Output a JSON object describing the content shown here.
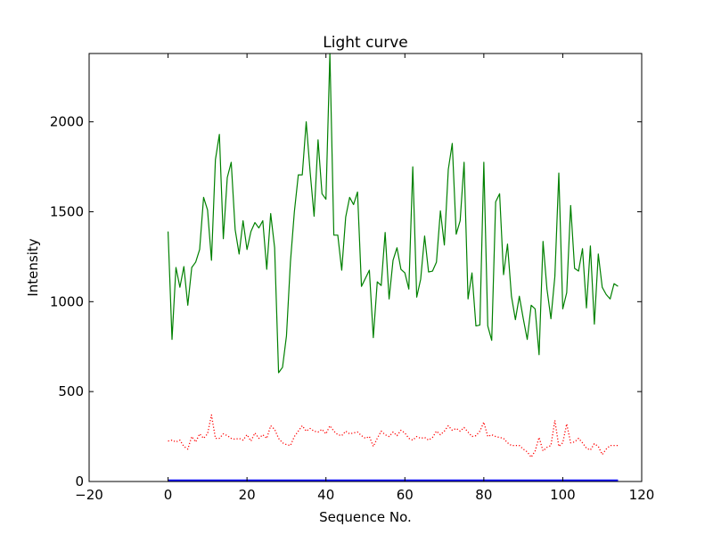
{
  "chart_data": {
    "type": "line",
    "title": "Light curve",
    "xlabel": "Sequence No.",
    "ylabel": "Intensity",
    "xlim": [
      -20,
      120
    ],
    "ylim": [
      0,
      2380
    ],
    "xticks": [
      -20,
      0,
      20,
      40,
      60,
      80,
      100,
      120
    ],
    "yticks": [
      0,
      500,
      1000,
      1500,
      2000
    ],
    "xtick_labels": [
      "−20",
      "0",
      "20",
      "40",
      "60",
      "80",
      "100",
      "120"
    ],
    "ytick_labels": [
      "0",
      "500",
      "1000",
      "1500",
      "2000"
    ],
    "grid": false,
    "legend": "none",
    "series": [
      {
        "color": "#008000",
        "style": "solid",
        "x": [
          0,
          1,
          2,
          3,
          4,
          5,
          6,
          7,
          8,
          9,
          10,
          11,
          12,
          13,
          14,
          15,
          16,
          17,
          18,
          19,
          20,
          21,
          22,
          23,
          24,
          25,
          26,
          27,
          28,
          29,
          30,
          31,
          32,
          33,
          34,
          35,
          36,
          37,
          38,
          39,
          40,
          41,
          42,
          43,
          44,
          45,
          46,
          47,
          48,
          49,
          50,
          51,
          52,
          53,
          54,
          55,
          56,
          57,
          58,
          59,
          60,
          61,
          62,
          63,
          64,
          65,
          66,
          67,
          68,
          69,
          70,
          71,
          72,
          73,
          74,
          75,
          76,
          77,
          78,
          79,
          80,
          81,
          82,
          83,
          84,
          85,
          86,
          87,
          88,
          89,
          90,
          91,
          92,
          93,
          94,
          95,
          96,
          97,
          98,
          99,
          100,
          101,
          102,
          103,
          104,
          105,
          106,
          107,
          108,
          109,
          110,
          111,
          112,
          113,
          114
        ],
        "values": [
          1390,
          790,
          1190,
          1080,
          1195,
          980,
          1190,
          1220,
          1290,
          1580,
          1510,
          1230,
          1790,
          1930,
          1350,
          1690,
          1775,
          1400,
          1265,
          1450,
          1290,
          1390,
          1440,
          1410,
          1450,
          1180,
          1490,
          1300,
          605,
          635,
          810,
          1220,
          1500,
          1705,
          1705,
          2000,
          1720,
          1475,
          1900,
          1600,
          1570,
          2380,
          1370,
          1370,
          1175,
          1470,
          1580,
          1540,
          1610,
          1085,
          1130,
          1175,
          800,
          1110,
          1090,
          1385,
          1015,
          1230,
          1300,
          1180,
          1160,
          1070,
          1750,
          1025,
          1125,
          1365,
          1165,
          1170,
          1220,
          1505,
          1315,
          1735,
          1880,
          1375,
          1450,
          1775,
          1015,
          1160,
          865,
          870,
          1775,
          865,
          785,
          1555,
          1600,
          1150,
          1320,
          1030,
          900,
          1030,
          905,
          790,
          980,
          960,
          705,
          1335,
          1070,
          905,
          1140,
          1715,
          960,
          1050,
          1535,
          1185,
          1170,
          1295,
          965,
          1310,
          875,
          1265,
          1080,
          1040,
          1015,
          1100,
          1085
        ]
      },
      {
        "color": "#ff0000",
        "style": "dotted",
        "x": [
          0,
          1,
          2,
          3,
          4,
          5,
          6,
          7,
          8,
          9,
          10,
          11,
          12,
          13,
          14,
          15,
          16,
          17,
          18,
          19,
          20,
          21,
          22,
          23,
          24,
          25,
          26,
          27,
          28,
          29,
          30,
          31,
          32,
          33,
          34,
          35,
          36,
          37,
          38,
          39,
          40,
          41,
          42,
          43,
          44,
          45,
          46,
          47,
          48,
          49,
          50,
          51,
          52,
          53,
          54,
          55,
          56,
          57,
          58,
          59,
          60,
          61,
          62,
          63,
          64,
          65,
          66,
          67,
          68,
          69,
          70,
          71,
          72,
          73,
          74,
          75,
          76,
          77,
          78,
          79,
          80,
          81,
          82,
          83,
          84,
          85,
          86,
          87,
          88,
          89,
          90,
          91,
          92,
          93,
          94,
          95,
          96,
          97,
          98,
          99,
          100,
          101,
          102,
          103,
          104,
          105,
          106,
          107,
          108,
          109,
          110,
          111,
          112,
          113,
          114
        ],
        "values": [
          225,
          230,
          220,
          230,
          195,
          180,
          250,
          220,
          265,
          240,
          265,
          370,
          240,
          240,
          265,
          255,
          240,
          235,
          240,
          230,
          260,
          225,
          270,
          240,
          260,
          240,
          310,
          290,
          240,
          215,
          205,
          200,
          250,
          280,
          310,
          280,
          295,
          280,
          275,
          290,
          265,
          310,
          280,
          260,
          255,
          280,
          265,
          270,
          275,
          255,
          240,
          250,
          195,
          240,
          280,
          260,
          250,
          275,
          255,
          285,
          270,
          240,
          230,
          250,
          240,
          245,
          230,
          245,
          280,
          260,
          280,
          310,
          285,
          295,
          280,
          300,
          275,
          250,
          255,
          280,
          330,
          250,
          260,
          250,
          245,
          240,
          215,
          200,
          200,
          200,
          180,
          165,
          135,
          170,
          245,
          170,
          190,
          200,
          340,
          195,
          215,
          320,
          215,
          220,
          240,
          215,
          185,
          175,
          210,
          195,
          150,
          180,
          200,
          200,
          200
        ]
      },
      {
        "color": "#0000ff",
        "style": "solid",
        "x": [
          0,
          1,
          2,
          3,
          4,
          5,
          6,
          7,
          8,
          9,
          10,
          11,
          12,
          13,
          14,
          15,
          16,
          17,
          18,
          19,
          20,
          21,
          22,
          23,
          24,
          25,
          26,
          27,
          28,
          29,
          30,
          31,
          32,
          33,
          34,
          35,
          36,
          37,
          38,
          39,
          40,
          41,
          42,
          43,
          44,
          45,
          46,
          47,
          48,
          49,
          50,
          51,
          52,
          53,
          54,
          55,
          56,
          57,
          58,
          59,
          60,
          61,
          62,
          63,
          64,
          65,
          66,
          67,
          68,
          69,
          70,
          71,
          72,
          73,
          74,
          75,
          76,
          77,
          78,
          79,
          80,
          81,
          82,
          83,
          84,
          85,
          86,
          87,
          88,
          89,
          90,
          91,
          92,
          93,
          94,
          95,
          96,
          97,
          98,
          99,
          100,
          101,
          102,
          103,
          104,
          105,
          106,
          107,
          108,
          109,
          110,
          111,
          112,
          113,
          114
        ],
        "values": [
          5,
          5,
          5,
          5,
          5,
          5,
          5,
          5,
          5,
          5,
          5,
          5,
          5,
          5,
          5,
          5,
          5,
          5,
          5,
          5,
          5,
          5,
          5,
          5,
          5,
          5,
          5,
          5,
          5,
          5,
          5,
          5,
          5,
          5,
          5,
          5,
          5,
          5,
          5,
          5,
          5,
          5,
          5,
          5,
          5,
          5,
          5,
          5,
          5,
          5,
          5,
          5,
          5,
          5,
          5,
          5,
          5,
          5,
          5,
          5,
          5,
          5,
          5,
          5,
          5,
          5,
          5,
          5,
          5,
          5,
          5,
          5,
          5,
          5,
          5,
          5,
          5,
          5,
          5,
          5,
          5,
          5,
          5,
          5,
          5,
          5,
          5,
          5,
          5,
          5,
          5,
          5,
          5,
          5,
          5,
          5,
          5,
          5,
          5,
          5,
          5,
          5,
          5,
          5,
          5,
          5,
          5,
          5,
          5,
          5,
          5,
          5,
          5,
          5,
          5
        ]
      }
    ]
  }
}
